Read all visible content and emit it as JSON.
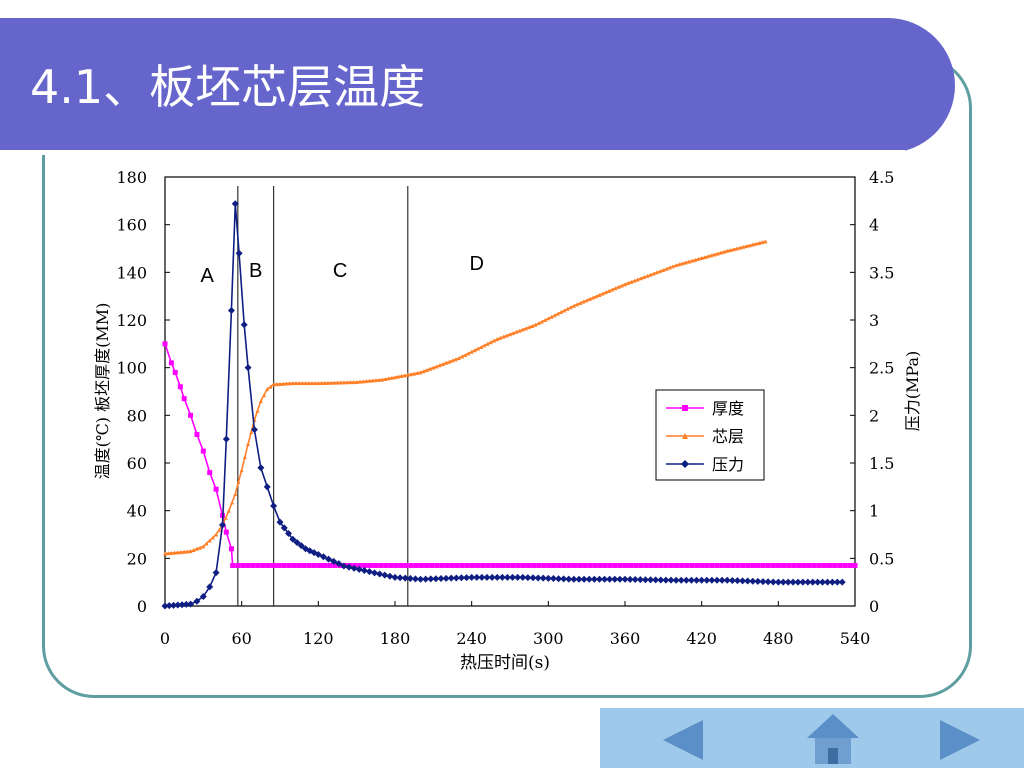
{
  "slide": {
    "title": "4.1、板坯芯层温度"
  },
  "colors": {
    "title_bar": "#6565cc",
    "frame": "#5f9ea0",
    "nav_bar": "#9ec9ea",
    "nav_icon": "#5a8fc7"
  },
  "navigation": {
    "prev_icon": "triangle-left-icon",
    "home_icon": "house-icon",
    "next_icon": "triangle-right-icon"
  },
  "chart_data": {
    "type": "line",
    "xlabel": "热压时间(s)",
    "ylabel_left": "温度(℃)    板坯厚度(MM)",
    "ylabel_left_parts": [
      "板坯厚度(MM)",
      "温度(℃)"
    ],
    "ylabel_right": "压力(MPa)",
    "xlim": [
      0,
      540
    ],
    "ylim_left": [
      0,
      180
    ],
    "ylim_right": [
      0,
      4.5
    ],
    "x_ticks": [
      0,
      60,
      120,
      180,
      240,
      300,
      360,
      420,
      480,
      540
    ],
    "y_left_ticks": [
      0,
      20,
      40,
      60,
      80,
      100,
      120,
      140,
      160,
      180
    ],
    "y_right_ticks": [
      "0",
      "0.5",
      "1",
      "1.5",
      "2",
      "2.5",
      "3",
      "3.5",
      "4",
      "4.5"
    ],
    "grid": false,
    "legend_position": "right",
    "stage_lines_x": [
      57,
      85,
      190
    ],
    "stage_labels": [
      {
        "label": "A",
        "x": 33,
        "y": 136
      },
      {
        "label": "B",
        "x": 71,
        "y": 138
      },
      {
        "label": "C",
        "x": 137,
        "y": 138
      },
      {
        "label": "D",
        "x": 244,
        "y": 141
      }
    ],
    "series": [
      {
        "name": "厚度",
        "axis": "left",
        "color": "#ff00ff",
        "marker": "square",
        "points": [
          [
            0,
            110
          ],
          [
            5,
            102
          ],
          [
            8,
            98
          ],
          [
            12,
            92
          ],
          [
            15,
            87
          ],
          [
            20,
            80
          ],
          [
            25,
            72
          ],
          [
            30,
            65
          ],
          [
            35,
            56
          ],
          [
            40,
            49
          ],
          [
            45,
            38
          ],
          [
            48,
            31
          ],
          [
            52,
            24
          ],
          [
            53,
            17
          ],
          [
            540,
            17
          ]
        ]
      },
      {
        "name": "芯层",
        "axis": "left",
        "color": "#ff7f27",
        "marker": "triangle",
        "points": [
          [
            0,
            22
          ],
          [
            20,
            23
          ],
          [
            30,
            25
          ],
          [
            40,
            30
          ],
          [
            45,
            34
          ],
          [
            50,
            40
          ],
          [
            55,
            47
          ],
          [
            60,
            57
          ],
          [
            65,
            68
          ],
          [
            70,
            78
          ],
          [
            75,
            86
          ],
          [
            80,
            91
          ],
          [
            85,
            93
          ],
          [
            100,
            93.5
          ],
          [
            120,
            93.5
          ],
          [
            150,
            94
          ],
          [
            170,
            95
          ],
          [
            200,
            98
          ],
          [
            230,
            104
          ],
          [
            260,
            112
          ],
          [
            290,
            118
          ],
          [
            320,
            126
          ],
          [
            360,
            135
          ],
          [
            400,
            143
          ],
          [
            440,
            149
          ],
          [
            470,
            153
          ]
        ]
      },
      {
        "name": "压力",
        "axis": "right",
        "color": "#0f1e82",
        "marker": "diamond",
        "points": [
          [
            0,
            0
          ],
          [
            10,
            0.01
          ],
          [
            20,
            0.02
          ],
          [
            25,
            0.05
          ],
          [
            30,
            0.1
          ],
          [
            35,
            0.2
          ],
          [
            40,
            0.35
          ],
          [
            45,
            0.85
          ],
          [
            48,
            1.75
          ],
          [
            52,
            3.1
          ],
          [
            55,
            4.22
          ],
          [
            58,
            3.7
          ],
          [
            62,
            2.95
          ],
          [
            65,
            2.5
          ],
          [
            70,
            1.85
          ],
          [
            75,
            1.45
          ],
          [
            80,
            1.25
          ],
          [
            85,
            1.05
          ],
          [
            90,
            0.88
          ],
          [
            100,
            0.7
          ],
          [
            110,
            0.6
          ],
          [
            120,
            0.54
          ],
          [
            140,
            0.42
          ],
          [
            160,
            0.36
          ],
          [
            180,
            0.3
          ],
          [
            200,
            0.28
          ],
          [
            240,
            0.3
          ],
          [
            280,
            0.3
          ],
          [
            320,
            0.28
          ],
          [
            360,
            0.28
          ],
          [
            400,
            0.27
          ],
          [
            440,
            0.27
          ],
          [
            480,
            0.25
          ],
          [
            530,
            0.25
          ]
        ]
      }
    ]
  }
}
